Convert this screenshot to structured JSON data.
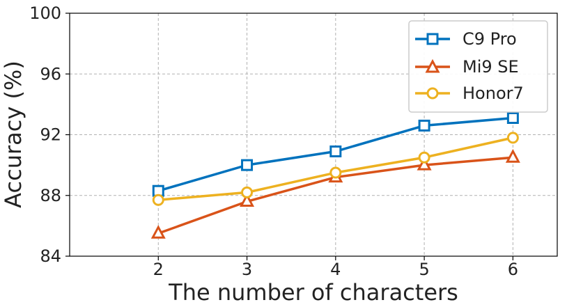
{
  "chart_data": {
    "type": "line",
    "title": "",
    "xlabel": "The number of characters",
    "ylabel": "Accuracy (%)",
    "x": [
      2,
      3,
      4,
      5,
      6
    ],
    "xlim": [
      1,
      6.5
    ],
    "ylim": [
      84,
      100
    ],
    "xticks": [
      "2",
      "3",
      "4",
      "5",
      "6"
    ],
    "yticks": [
      "84",
      "88",
      "92",
      "96",
      "100"
    ],
    "grid": true,
    "legend_position": "top-right",
    "series": [
      {
        "name": "C9 Pro",
        "values": [
          88.3,
          90.0,
          90.9,
          92.6,
          93.1
        ],
        "color": "#0072bd",
        "marker": "square"
      },
      {
        "name": "Mi9 SE",
        "values": [
          85.5,
          87.6,
          89.2,
          90.0,
          90.5
        ],
        "color": "#d95319",
        "marker": "triangle"
      },
      {
        "name": "Honor7",
        "values": [
          87.7,
          88.2,
          89.5,
          90.5,
          91.8
        ],
        "color": "#edb120",
        "marker": "circle"
      }
    ]
  }
}
